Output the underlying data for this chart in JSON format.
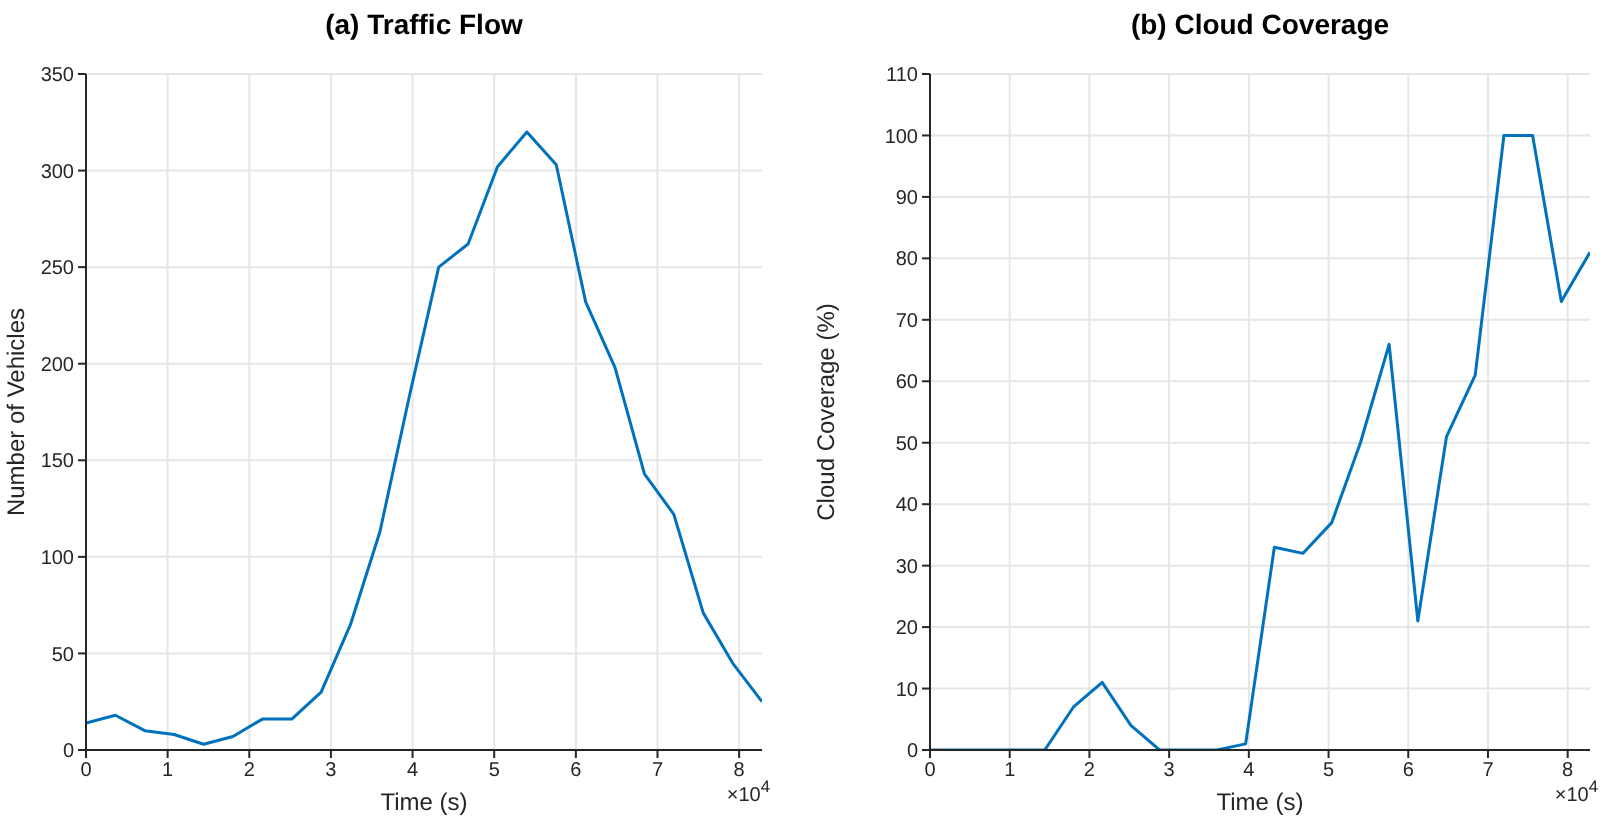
{
  "chart_data": [
    {
      "type": "line",
      "title": "(a) Traffic Flow",
      "xlabel": "Time (s)",
      "ylabel": "Number of Vehicles",
      "x": [
        0,
        0.36,
        0.72,
        1.08,
        1.44,
        1.8,
        2.16,
        2.52,
        2.88,
        3.24,
        3.6,
        3.96,
        4.32,
        4.68,
        5.04,
        5.4,
        5.76,
        6.12,
        6.48,
        6.84,
        7.2,
        7.56,
        7.92,
        8.28
      ],
      "series": [
        {
          "color": "#0072bd",
          "values": [
            14,
            18,
            10,
            8,
            3,
            7,
            16,
            16,
            30,
            65,
            113,
            183,
            250,
            262,
            302,
            320,
            303,
            232,
            198,
            143,
            122,
            71,
            45,
            25
          ]
        }
      ],
      "xlim": [
        0,
        8.28
      ],
      "ylim": [
        0,
        350
      ],
      "xticks": [
        0,
        1,
        2,
        3,
        4,
        5,
        6,
        7,
        8
      ],
      "yticks": [
        0,
        50,
        100,
        150,
        200,
        250,
        300,
        350
      ],
      "grid": true,
      "annotations": [
        "×10$^{4}$"
      ]
    },
    {
      "type": "line",
      "title": "(b) Cloud Coverage",
      "xlabel": "Time (s)",
      "ylabel": "Cloud Coverage (%)",
      "x": [
        0,
        0.36,
        0.72,
        1.08,
        1.44,
        1.8,
        2.16,
        2.52,
        2.88,
        3.24,
        3.6,
        3.96,
        4.32,
        4.68,
        5.04,
        5.4,
        5.76,
        6.12,
        6.48,
        6.84,
        7.2,
        7.56,
        7.92,
        8.28
      ],
      "series": [
        {
          "color": "#0072bd",
          "values": [
            0,
            0,
            0,
            0,
            0,
            7,
            11,
            4,
            0,
            0,
            0,
            1,
            33,
            32,
            37,
            50,
            66,
            21,
            51,
            61,
            100,
            100,
            73,
            81
          ]
        }
      ],
      "xlim": [
        0,
        8.28
      ],
      "ylim": [
        0,
        110
      ],
      "xticks": [
        0,
        1,
        2,
        3,
        4,
        5,
        6,
        7,
        8
      ],
      "yticks": [
        0,
        10,
        20,
        30,
        40,
        50,
        60,
        70,
        80,
        90,
        100,
        110
      ],
      "grid": true,
      "annotations": [
        "×10$^{4}$"
      ]
    }
  ]
}
